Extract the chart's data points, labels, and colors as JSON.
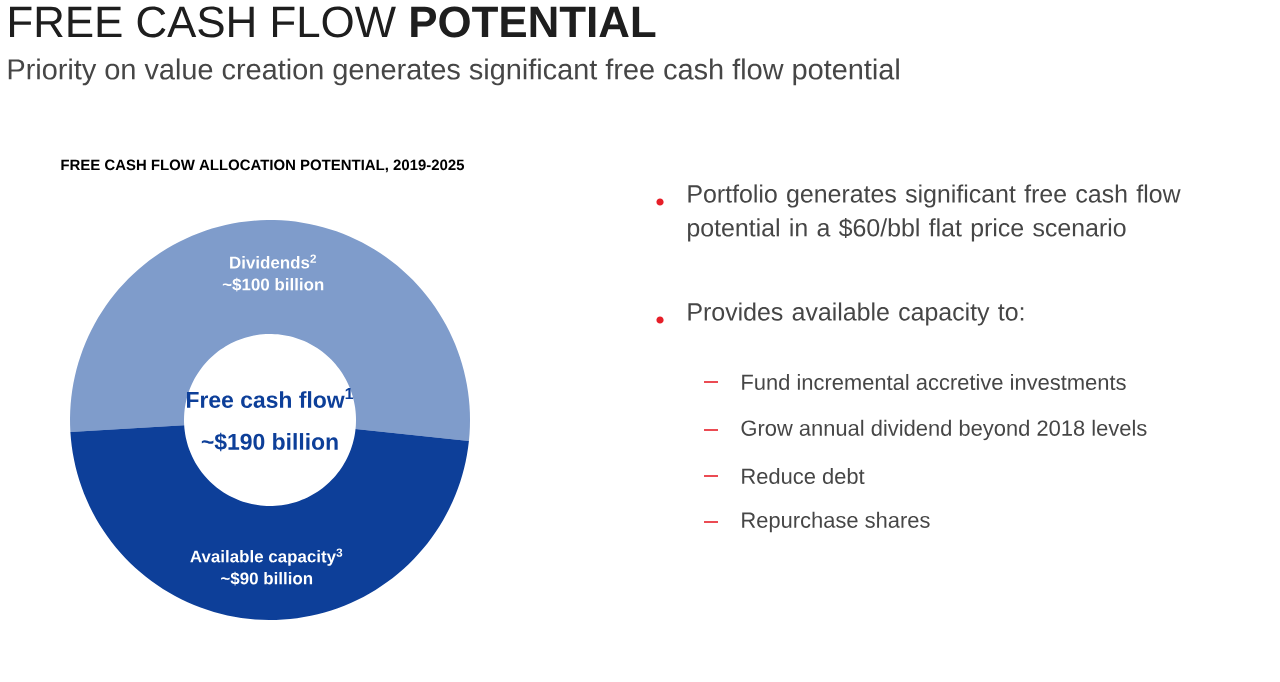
{
  "chart_data": {
    "type": "donut",
    "title": "FREE CASH FLOW **POTENTIAL**",
    "subtitle": "Priority on value creation generates significant free cash flow potential",
    "categories": [
      "Dividends$^{2}$",
      "Available capacity$^{3}$"
    ],
    "values": [
      100,
      90
    ],
    "value_labels": [
      "~$100 billion",
      "~$90 billion"
    ],
    "colors": [
      "#7f9ccb",
      "#0d3f99"
    ],
    "annotations": [
      "FREE CASH FLOW ALLOCATION POTENTIAL, 2019-2025",
      "Free cash flow$^{1}$",
      "~$190 billion",
      "Portfolio generates significant free cash flow potential in a $60/bbl flat price scenario",
      "Provides available capacity to:",
      "Fund incremental accretive investments",
      "Grow annual dividend beyond 2018 levels",
      "Reduce debt",
      "Repurchase shares"
    ]
  }
}
